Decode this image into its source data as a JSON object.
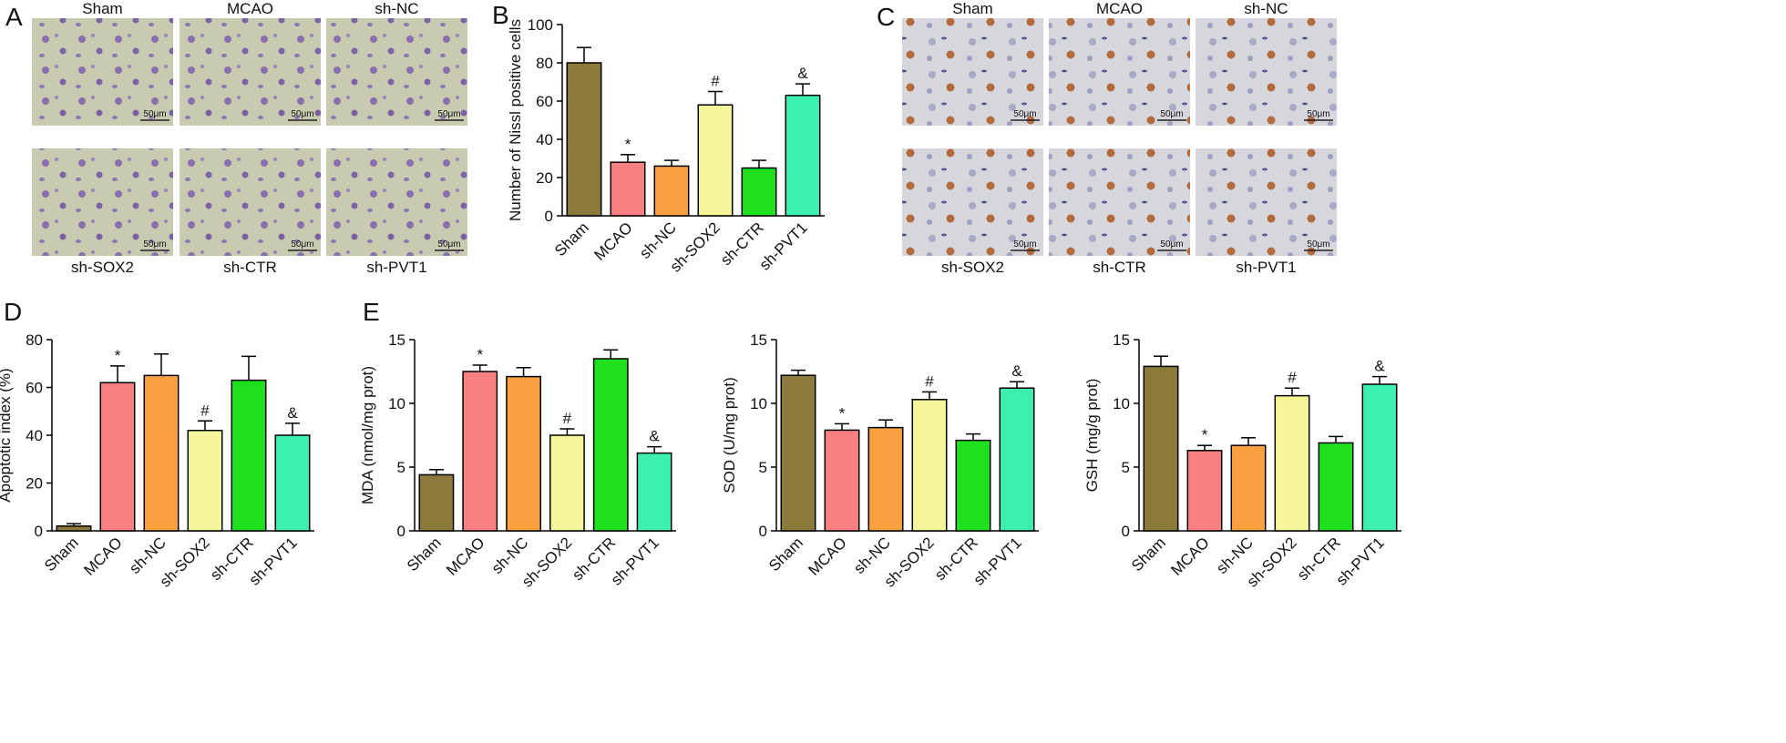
{
  "panel_a": {
    "panel_label": "A",
    "images": [
      "Sham",
      "MCAO",
      "sh-NC",
      "sh-SOX2",
      "sh-CTR",
      "sh-PVT1"
    ],
    "scale_bar": "50μm"
  },
  "panel_c": {
    "panel_label": "C",
    "images": [
      "Sham",
      "MCAO",
      "sh-NC",
      "sh-SOX2",
      "sh-CTR",
      "sh-PVT1"
    ],
    "scale_bar": "50μm"
  },
  "chart_data": [
    {
      "type": "bar",
      "panel_label": "B",
      "ylabel": "Number of Nissl positive cells",
      "categories": [
        "Sham",
        "MCAO",
        "sh-NC",
        "sh-SOX2",
        "sh-CTR",
        "sh-PVT1"
      ],
      "colors": [
        "#8b7a3a",
        "#f88080",
        "#f9a040",
        "#f5f59a",
        "#1ee01e",
        "#3ef0b0"
      ],
      "values": [
        80,
        28,
        26,
        58,
        25,
        63
      ],
      "errors": [
        8,
        4,
        3,
        7,
        4,
        6
      ],
      "annotations": [
        null,
        "*",
        null,
        "#",
        null,
        "&"
      ],
      "ylim": [
        0,
        100
      ],
      "yticks": [
        0,
        20,
        40,
        60,
        80,
        100
      ]
    },
    {
      "type": "bar",
      "panel_label": "D",
      "ylabel": "Apoptotic index (%)",
      "categories": [
        "Sham",
        "MCAO",
        "sh-NC",
        "sh-SOX2",
        "sh-CTR",
        "sh-PVT1"
      ],
      "colors": [
        "#8b7a3a",
        "#f88080",
        "#f9a040",
        "#f5f59a",
        "#1ee01e",
        "#3ef0b0"
      ],
      "values": [
        2,
        62,
        65,
        42,
        63,
        40
      ],
      "errors": [
        1,
        7,
        9,
        4,
        10,
        5
      ],
      "annotations": [
        null,
        "*",
        null,
        "#",
        null,
        "&"
      ],
      "ylim": [
        0,
        80
      ],
      "yticks": [
        0,
        20,
        40,
        60,
        80
      ]
    },
    {
      "type": "bar",
      "panel_label": "E",
      "ylabel": "MDA (nmol/mg prot)",
      "categories": [
        "Sham",
        "MCAO",
        "sh-NC",
        "sh-SOX2",
        "sh-CTR",
        "sh-PVT1"
      ],
      "colors": [
        "#8b7a3a",
        "#f88080",
        "#f9a040",
        "#f5f59a",
        "#1ee01e",
        "#3ef0b0"
      ],
      "values": [
        4.4,
        12.5,
        12.1,
        7.5,
        13.5,
        6.1
      ],
      "errors": [
        0.4,
        0.5,
        0.7,
        0.5,
        0.7,
        0.5
      ],
      "annotations": [
        null,
        "*",
        null,
        "#",
        null,
        "&"
      ],
      "ylim": [
        0,
        15
      ],
      "yticks": [
        0,
        5,
        10,
        15
      ]
    },
    {
      "type": "bar",
      "ylabel": "SOD (U/mg prot)",
      "categories": [
        "Sham",
        "MCAO",
        "sh-NC",
        "sh-SOX2",
        "sh-CTR",
        "sh-PVT1"
      ],
      "colors": [
        "#8b7a3a",
        "#f88080",
        "#f9a040",
        "#f5f59a",
        "#1ee01e",
        "#3ef0b0"
      ],
      "values": [
        12.2,
        7.9,
        8.1,
        10.3,
        7.1,
        11.2
      ],
      "errors": [
        0.4,
        0.5,
        0.6,
        0.6,
        0.5,
        0.5
      ],
      "annotations": [
        null,
        "*",
        null,
        "#",
        null,
        "&"
      ],
      "ylim": [
        0,
        15
      ],
      "yticks": [
        0,
        5,
        10,
        15
      ]
    },
    {
      "type": "bar",
      "ylabel": "GSH (mg/g prot)",
      "categories": [
        "Sham",
        "MCAO",
        "sh-NC",
        "sh-SOX2",
        "sh-CTR",
        "sh-PVT1"
      ],
      "colors": [
        "#8b7a3a",
        "#f88080",
        "#f9a040",
        "#f5f59a",
        "#1ee01e",
        "#3ef0b0"
      ],
      "values": [
        12.9,
        6.3,
        6.7,
        10.6,
        6.9,
        11.5
      ],
      "errors": [
        0.8,
        0.4,
        0.6,
        0.6,
        0.5,
        0.6
      ],
      "annotations": [
        null,
        "*",
        null,
        "#",
        null,
        "&"
      ],
      "ylim": [
        0,
        15
      ],
      "yticks": [
        0,
        5,
        10,
        15
      ]
    }
  ]
}
